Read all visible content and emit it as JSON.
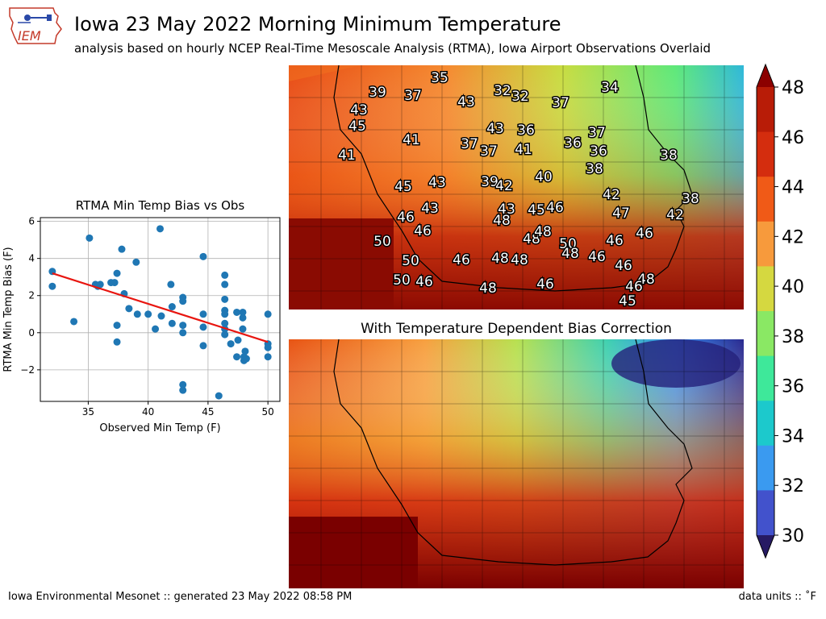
{
  "header": {
    "logo_text": "IEM",
    "title": "Iowa 23 May 2022 Morning Minimum Temperature",
    "subtitle": "analysis based on hourly NCEP Real-Time Mesoscale Analysis (RTMA), Iowa Airport Observations Overlaid"
  },
  "map2": {
    "title": "With Temperature Dependent Bias Correction"
  },
  "footer": {
    "left": "Iowa Environmental Mesonet :: generated 23 May 2022 08:58 PM",
    "right": "data units :: ˚F"
  },
  "colorbar": {
    "ticks": [
      "48",
      "46",
      "44",
      "42",
      "40",
      "38",
      "36",
      "34",
      "32",
      "30"
    ],
    "colors": [
      "#8c0000",
      "#b81c07",
      "#d42d0e",
      "#f05a17",
      "#f79a3c",
      "#d5d840",
      "#8ae864",
      "#3ee89a",
      "#1cc9cc",
      "#3a9af0",
      "#4252cc",
      "#261a63"
    ]
  },
  "obs_labels": [
    {
      "v": "35",
      "x": 545,
      "y": 96
    },
    {
      "v": "39",
      "x": 468,
      "y": 114
    },
    {
      "v": "37",
      "x": 512,
      "y": 118
    },
    {
      "v": "32",
      "x": 623,
      "y": 112
    },
    {
      "v": "32",
      "x": 645,
      "y": 119
    },
    {
      "v": "34",
      "x": 756,
      "y": 108
    },
    {
      "v": "43",
      "x": 445,
      "y": 136
    },
    {
      "v": "43",
      "x": 578,
      "y": 126
    },
    {
      "v": "37",
      "x": 695,
      "y": 127
    },
    {
      "v": "45",
      "x": 443,
      "y": 156
    },
    {
      "v": "43",
      "x": 614,
      "y": 159
    },
    {
      "v": "36",
      "x": 652,
      "y": 161
    },
    {
      "v": "37",
      "x": 740,
      "y": 164
    },
    {
      "v": "41",
      "x": 510,
      "y": 173
    },
    {
      "v": "37",
      "x": 582,
      "y": 178
    },
    {
      "v": "37",
      "x": 606,
      "y": 187
    },
    {
      "v": "41",
      "x": 649,
      "y": 185
    },
    {
      "v": "36",
      "x": 710,
      "y": 177
    },
    {
      "v": "36",
      "x": 742,
      "y": 187
    },
    {
      "v": "38",
      "x": 829,
      "y": 192
    },
    {
      "v": "41",
      "x": 430,
      "y": 192
    },
    {
      "v": "38",
      "x": 737,
      "y": 209
    },
    {
      "v": "40",
      "x": 674,
      "y": 219
    },
    {
      "v": "39",
      "x": 607,
      "y": 225
    },
    {
      "v": "42",
      "x": 625,
      "y": 230
    },
    {
      "v": "43",
      "x": 542,
      "y": 226
    },
    {
      "v": "45",
      "x": 500,
      "y": 231
    },
    {
      "v": "42",
      "x": 758,
      "y": 241
    },
    {
      "v": "38",
      "x": 856,
      "y": 246
    },
    {
      "v": "46",
      "x": 503,
      "y": 269
    },
    {
      "v": "43",
      "x": 533,
      "y": 258
    },
    {
      "v": "43",
      "x": 628,
      "y": 259
    },
    {
      "v": "45",
      "x": 665,
      "y": 260
    },
    {
      "v": "46",
      "x": 688,
      "y": 257
    },
    {
      "v": "48",
      "x": 622,
      "y": 273
    },
    {
      "v": "47",
      "x": 770,
      "y": 264
    },
    {
      "v": "42",
      "x": 837,
      "y": 266
    },
    {
      "v": "46",
      "x": 524,
      "y": 286
    },
    {
      "v": "48",
      "x": 659,
      "y": 296
    },
    {
      "v": "48",
      "x": 673,
      "y": 287
    },
    {
      "v": "50",
      "x": 474,
      "y": 299
    },
    {
      "v": "50",
      "x": 704,
      "y": 302
    },
    {
      "v": "46",
      "x": 762,
      "y": 298
    },
    {
      "v": "46",
      "x": 799,
      "y": 289
    },
    {
      "v": "48",
      "x": 707,
      "y": 314
    },
    {
      "v": "50",
      "x": 509,
      "y": 323
    },
    {
      "v": "46",
      "x": 572,
      "y": 322
    },
    {
      "v": "48",
      "x": 620,
      "y": 320
    },
    {
      "v": "48",
      "x": 644,
      "y": 322
    },
    {
      "v": "46",
      "x": 740,
      "y": 318
    },
    {
      "v": "46",
      "x": 773,
      "y": 329
    },
    {
      "v": "50",
      "x": 498,
      "y": 347
    },
    {
      "v": "46",
      "x": 526,
      "y": 349
    },
    {
      "v": "48",
      "x": 605,
      "y": 357
    },
    {
      "v": "46",
      "x": 676,
      "y": 352
    },
    {
      "v": "48",
      "x": 801,
      "y": 346
    },
    {
      "v": "46",
      "x": 786,
      "y": 355
    },
    {
      "v": "45",
      "x": 778,
      "y": 373
    }
  ],
  "chart_data": {
    "type": "scatter",
    "title": "RTMA Min Temp Bias vs Obs",
    "xlabel": "Observed Min Temp (F)",
    "ylabel": "RTMA Min Temp Bias (F)",
    "xlim": [
      31,
      51
    ],
    "ylim": [
      -3.7,
      6.2
    ],
    "xticks": [
      35,
      40,
      45,
      50
    ],
    "yticks": [
      -2,
      0,
      2,
      4,
      6
    ],
    "grid": true,
    "point_color": "#1f77b4",
    "fit_color": "#e8150f",
    "fit_line": {
      "x": [
        32,
        50
      ],
      "y": [
        3.2,
        -0.5
      ]
    },
    "points": [
      [
        32,
        3.3
      ],
      [
        32,
        2.5
      ],
      [
        33.8,
        0.6
      ],
      [
        35.1,
        5.1
      ],
      [
        35.6,
        2.6
      ],
      [
        35.8,
        2.5
      ],
      [
        36,
        2.6
      ],
      [
        36.9,
        2.7
      ],
      [
        37.2,
        2.7
      ],
      [
        37.4,
        3.2
      ],
      [
        37.4,
        0.4
      ],
      [
        37.4,
        -0.5
      ],
      [
        37.8,
        4.5
      ],
      [
        38,
        2.1
      ],
      [
        38.4,
        1.3
      ],
      [
        39,
        3.8
      ],
      [
        39.1,
        1.0
      ],
      [
        40,
        1.0
      ],
      [
        40.6,
        0.2
      ],
      [
        41,
        5.6
      ],
      [
        41.1,
        0.9
      ],
      [
        41.9,
        2.6
      ],
      [
        42,
        1.4
      ],
      [
        42,
        0.5
      ],
      [
        42.9,
        1.9
      ],
      [
        42.9,
        1.7
      ],
      [
        42.9,
        0.4
      ],
      [
        42.9,
        0
      ],
      [
        42.9,
        -2.8
      ],
      [
        42.9,
        -3.1
      ],
      [
        44.6,
        4.1
      ],
      [
        44.6,
        1.0
      ],
      [
        44.6,
        0.3
      ],
      [
        44.6,
        -0.7
      ],
      [
        45.9,
        -3.4
      ],
      [
        46.4,
        3.1
      ],
      [
        46.4,
        2.6
      ],
      [
        46.4,
        1.8
      ],
      [
        46.4,
        1.2
      ],
      [
        46.4,
        1.0
      ],
      [
        46.4,
        0.5
      ],
      [
        46.4,
        0.2
      ],
      [
        46.4,
        -0.1
      ],
      [
        46.9,
        -0.6
      ],
      [
        47.4,
        1.1
      ],
      [
        47.4,
        -1.3
      ],
      [
        47.5,
        -0.4
      ],
      [
        47.9,
        1.1
      ],
      [
        47.9,
        0.8
      ],
      [
        47.9,
        0.2
      ],
      [
        48,
        -1.3
      ],
      [
        48,
        -1.5
      ],
      [
        48.1,
        -1.0
      ],
      [
        48.2,
        -1.4
      ],
      [
        50,
        1.0
      ],
      [
        50,
        -0.6
      ],
      [
        50,
        -0.8
      ],
      [
        50,
        -1.3
      ]
    ]
  }
}
